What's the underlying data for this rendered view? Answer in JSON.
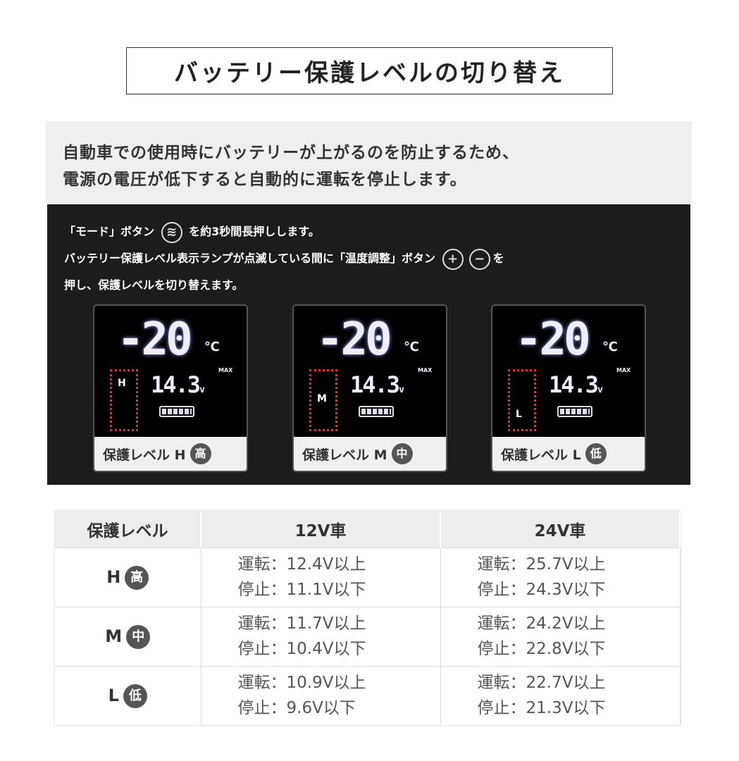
{
  "title": "バッテリー保護レベルの切り替え",
  "intro": {
    "line1": "自動車での使用時にバッテリーが上がるのを防止するため、",
    "line2": "電源の電圧が低下すると自動的に運転を停止します。"
  },
  "instructions": {
    "line1a": "「モード」ボタン",
    "line1b": "を約3秒間長押しします。",
    "line2a": "バッテリー保護レベル表示ランプが点滅している間に「温度調整」ボタン",
    "line2b": "を",
    "line3": "押し、保護レベルを切り替えます。",
    "mode_icon": "mode-wave-icon",
    "plus": "+",
    "minus": "−"
  },
  "screens": [
    {
      "temp": "-20",
      "unit": "℃",
      "max": "MAX",
      "volt": "14.3",
      "volt_unit": "v",
      "level": "H",
      "label": "保護レベル H",
      "badge": "高"
    },
    {
      "temp": "-20",
      "unit": "℃",
      "max": "MAX",
      "volt": "14.3",
      "volt_unit": "v",
      "level": "M",
      "label": "保護レベル M",
      "badge": "中"
    },
    {
      "temp": "-20",
      "unit": "℃",
      "max": "MAX",
      "volt": "14.3",
      "volt_unit": "v",
      "level": "L",
      "label": "保護レベル L",
      "badge": "低"
    }
  ],
  "table": {
    "headers": [
      "保護レベル",
      "12V車",
      "24V車"
    ],
    "rows": [
      {
        "level": "H",
        "badge": "高",
        "v12": [
          "運転：12.4V以上",
          "停止：11.1V以下"
        ],
        "v24": [
          "運転：25.7V以上",
          "停止：24.3V以下"
        ]
      },
      {
        "level": "M",
        "badge": "中",
        "v12": [
          "運転：11.7V以上",
          "停止：10.4V以下"
        ],
        "v24": [
          "運転：24.2V以上",
          "停止：22.8V以下"
        ]
      },
      {
        "level": "L",
        "badge": "低",
        "v12": [
          "運転：10.9V以上",
          "停止：9.6V以下"
        ],
        "v24": [
          "運転：22.7V以上",
          "停止：21.3V以下"
        ]
      }
    ]
  }
}
